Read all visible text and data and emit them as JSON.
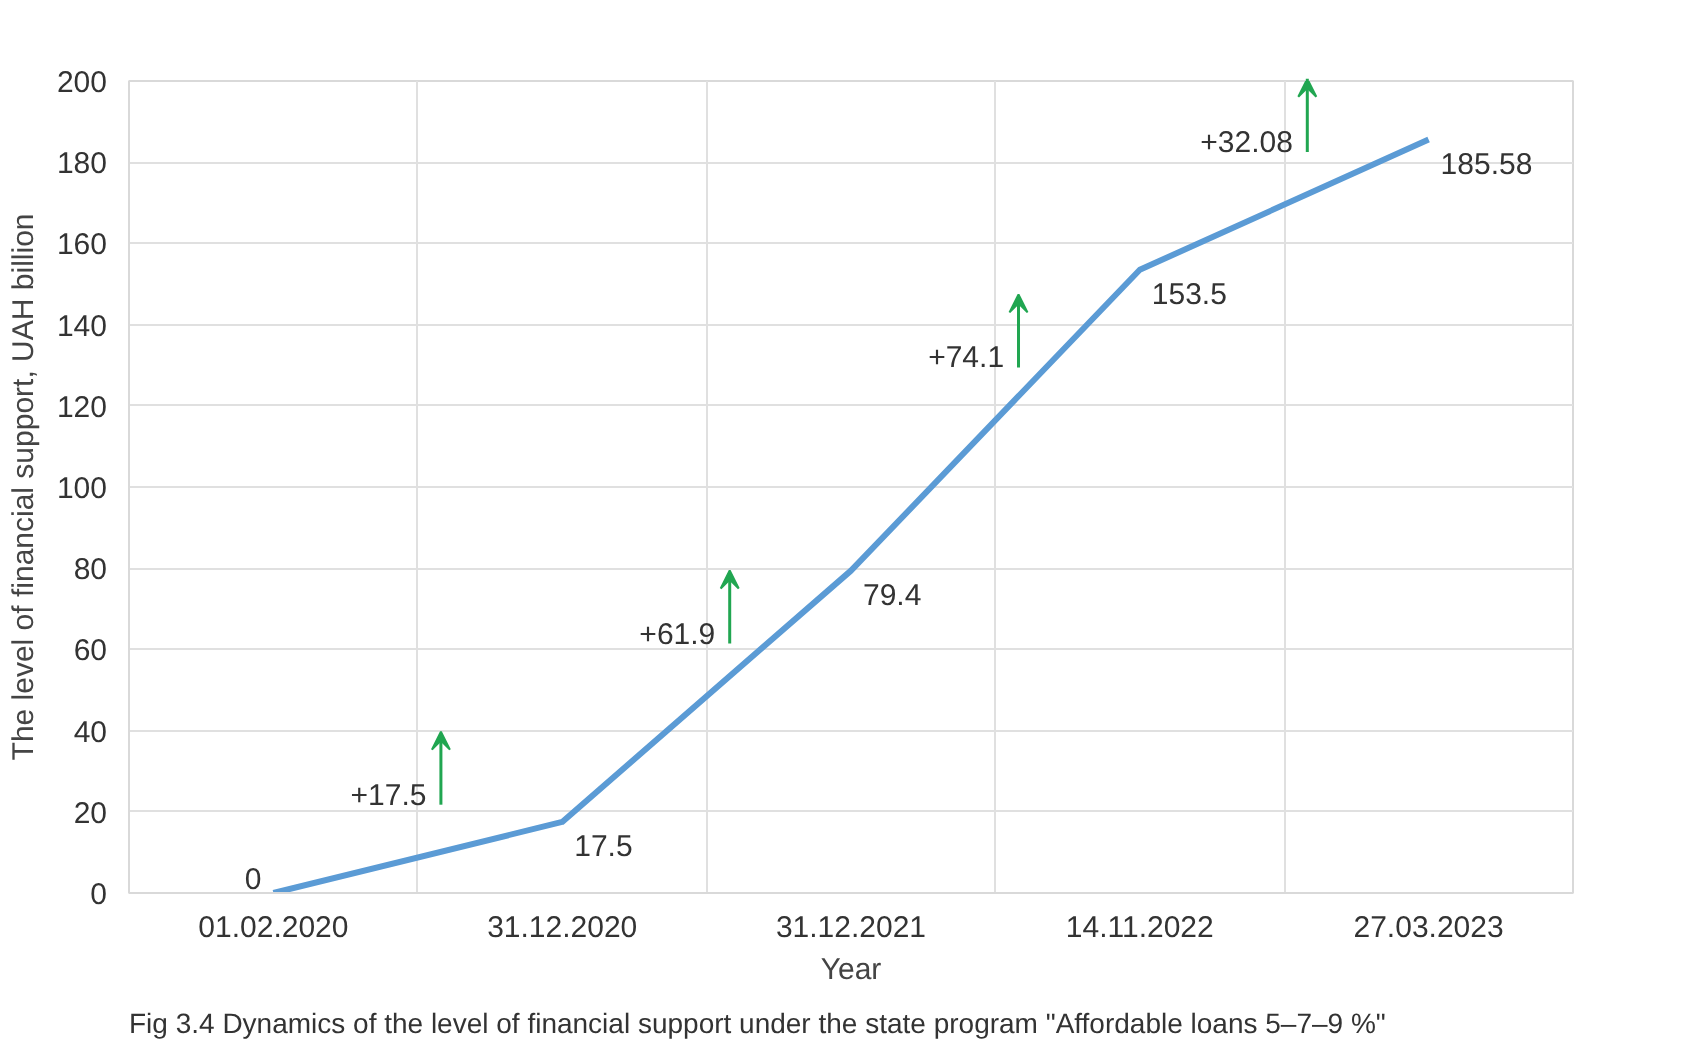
{
  "chart_data": {
    "type": "line",
    "xlabel": "Year",
    "ylabel": "The level of financial support, UAH billion",
    "categories": [
      "01.02.2020",
      "31.12.2020",
      "31.12.2021",
      "14.11.2022",
      "27.03.2023"
    ],
    "series": [
      {
        "color": "#5b9bd5",
        "values": [
          0,
          17.5,
          79.4,
          153.5,
          185.58
        ]
      }
    ],
    "ylim": [
      0,
      200
    ],
    "yticks": [
      0,
      20,
      40,
      60,
      80,
      100,
      120,
      140,
      160,
      180,
      200
    ],
    "grid": true,
    "data_labels": true,
    "marker": "none",
    "line_style": "solid",
    "annotations": [
      "+17.5",
      "+61.9",
      "+74.1",
      "+32.08",
      "Fig 3.4 Dynamics of the level of financial support under the state program \"Affordable loans 5–7–9 %\""
    ]
  }
}
